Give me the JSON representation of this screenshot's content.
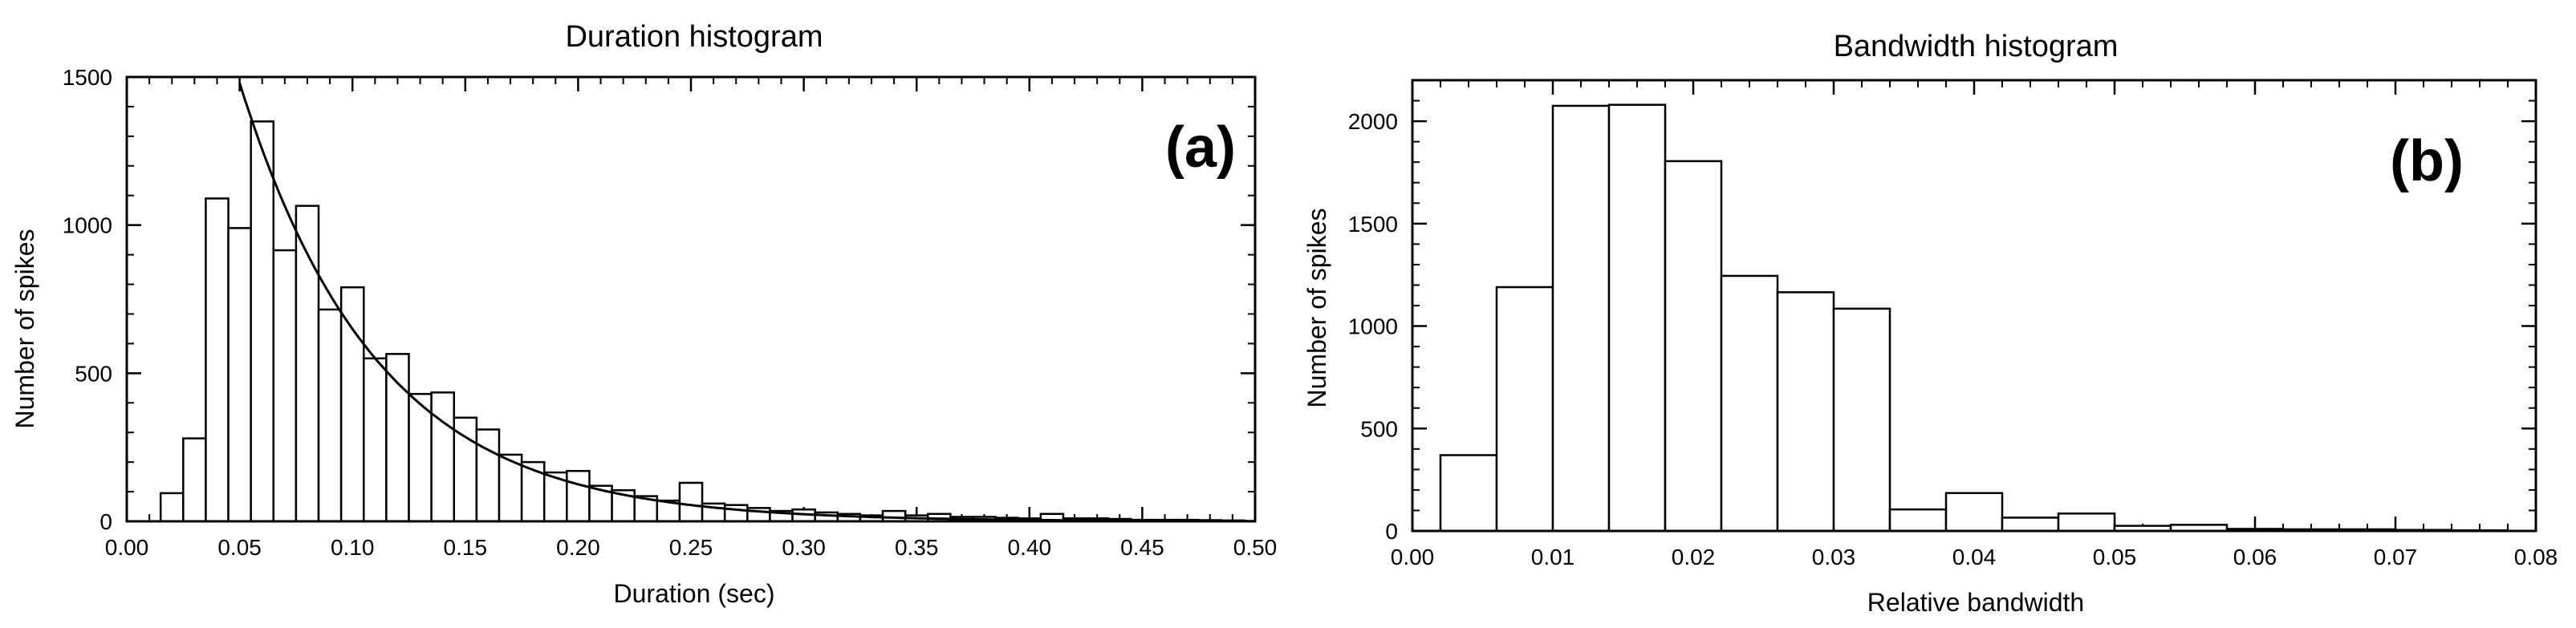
{
  "chart_data": [
    {
      "type": "bar",
      "panel_label": "(a)",
      "title": "Duration histogram",
      "xlabel": "Duration (sec)",
      "ylabel": "Number of spikes",
      "xlim": [
        0.0,
        0.5
      ],
      "ylim": [
        0,
        1500
      ],
      "x_ticks": [
        "0.00",
        "0.05",
        "0.10",
        "0.15",
        "0.20",
        "0.25",
        "0.30",
        "0.35",
        "0.40",
        "0.45",
        "0.50"
      ],
      "y_ticks": [
        "0",
        "500",
        "1000",
        "1500"
      ],
      "bin_width": 0.01,
      "bin_starts": [
        0.015,
        0.025,
        0.035,
        0.045,
        0.055,
        0.065,
        0.075,
        0.085,
        0.095,
        0.105,
        0.115,
        0.125,
        0.135,
        0.145,
        0.155,
        0.165,
        0.175,
        0.185,
        0.195,
        0.205,
        0.215,
        0.225,
        0.235,
        0.245,
        0.255,
        0.265,
        0.275,
        0.285,
        0.295,
        0.305,
        0.315,
        0.325,
        0.335,
        0.345,
        0.355,
        0.365,
        0.375,
        0.385,
        0.395,
        0.405,
        0.415,
        0.425,
        0.435,
        0.445,
        0.455,
        0.465,
        0.475,
        0.485
      ],
      "values": [
        95,
        280,
        1090,
        990,
        1350,
        915,
        1065,
        715,
        790,
        550,
        565,
        430,
        435,
        350,
        310,
        225,
        200,
        165,
        170,
        120,
        105,
        85,
        70,
        130,
        60,
        55,
        45,
        35,
        40,
        30,
        25,
        20,
        35,
        20,
        25,
        15,
        15,
        12,
        10,
        25,
        10,
        10,
        8,
        5,
        5,
        5,
        4,
        3
      ],
      "fit_curve": {
        "type": "exponential",
        "x_start": 0.05,
        "x_end": 0.5,
        "amplitude": 1480,
        "decay_length": 0.0607
      }
    },
    {
      "type": "bar",
      "panel_label": "(b)",
      "title": "Bandwidth histogram",
      "xlabel": "Relative bandwidth",
      "ylabel": "Number of spikes",
      "xlim": [
        0.0,
        0.08
      ],
      "ylim": [
        0,
        2200
      ],
      "x_ticks": [
        "0.00",
        "0.01",
        "0.02",
        "0.03",
        "0.04",
        "0.05",
        "0.06",
        "0.07",
        "0.08"
      ],
      "y_ticks": [
        "0",
        "500",
        "1000",
        "1500",
        "2000"
      ],
      "bin_width": 0.004,
      "bin_starts": [
        0.002,
        0.006,
        0.01,
        0.014,
        0.018,
        0.022,
        0.026,
        0.03,
        0.034,
        0.038,
        0.042,
        0.046,
        0.05,
        0.054,
        0.058,
        0.062,
        0.066,
        0.07,
        0.074
      ],
      "values": [
        370,
        1190,
        2075,
        2080,
        1805,
        1245,
        1165,
        1085,
        105,
        185,
        65,
        85,
        25,
        30,
        10,
        8,
        8,
        5,
        3
      ]
    }
  ]
}
